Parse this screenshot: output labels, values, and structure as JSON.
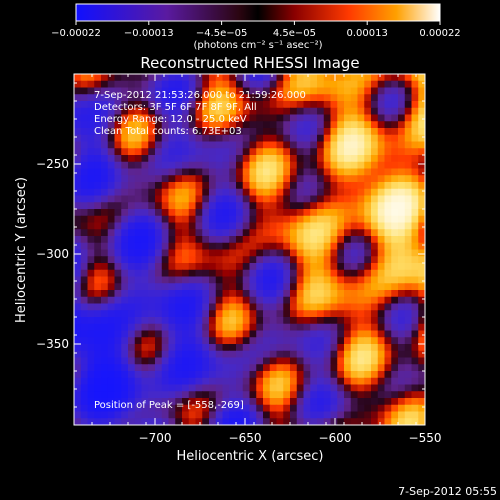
{
  "chart_data": {
    "type": "heatmap",
    "title": "Reconstructed RHESSI Image",
    "xlabel": "Heliocentric X (arcsec)",
    "ylabel": "Heliocentric Y (arcsec)",
    "xlim": [
      -745,
      -550
    ],
    "ylim": [
      -395,
      -200
    ],
    "xticks": [
      -700,
      -650,
      -600,
      -550
    ],
    "yticks": [
      -250,
      -300,
      -350
    ],
    "xtick_labels": [
      "−700",
      "−650",
      "−600",
      "−550"
    ],
    "ytick_labels": [
      "−250",
      "−300",
      "−350"
    ],
    "colorbar": {
      "min": -0.00022,
      "max": 0.00022,
      "tick_labels": [
        "−0.00022",
        "−0.00013",
        "−4.5e−05",
        "4.5e−05",
        "0.00013",
        "0.00022"
      ],
      "unit_label": "(photons cm⁻² s⁻¹ asec⁻²)"
    },
    "annotations": [
      "7-Sep-2012 21:53:26.000 to 21:59:26.000",
      "Detectors: 3F 5F 6F 7F 8F 9F, All",
      "Energy Range: 12.0 - 25.0 keV",
      "Clean      Total counts: 6.73E+03"
    ],
    "peak_label": "Position of Peak = [-558,-269]",
    "peak_position": [
      -558,
      -269
    ],
    "footer_date": "7-Sep-2012 05:55"
  }
}
